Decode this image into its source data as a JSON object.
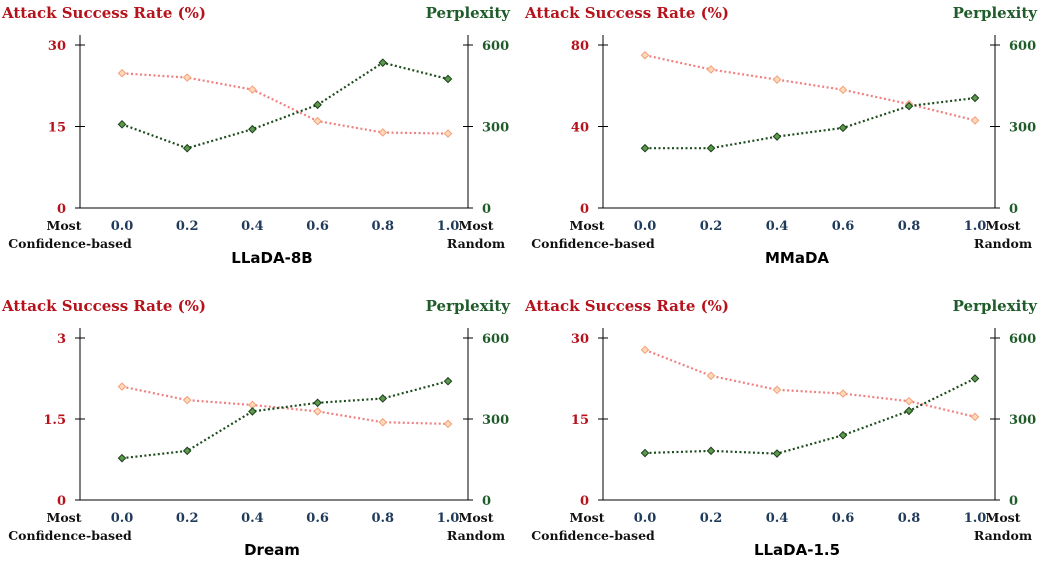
{
  "colors": {
    "asr": "#b5121b",
    "ppl": "#1f5c2a",
    "asr_line": "#f08080",
    "asr_marker_fill": "#ffd9b8",
    "asr_marker_edge": "#f2a07a",
    "ppl_line": "#1e4d1e",
    "ppl_marker_fill": "#5a9a4a",
    "ppl_marker_edge": "#1e3d1e",
    "xtick": "#1f3a5a"
  },
  "chart_data": [
    {
      "type": "line",
      "model": "LLaDA-8B",
      "left_axis_label": "Attack Success Rate (%)",
      "right_axis_label": "Perplexity",
      "left_left_label": "Most",
      "left_bottom_label": "Confidence-based",
      "right_top_label": "Most",
      "right_bottom_label": "Random",
      "x": [
        "0.0",
        "0.2",
        "0.4",
        "0.6",
        "0.8",
        "1.0"
      ],
      "left_ylim": [
        0,
        30
      ],
      "left_ticks": [
        "0",
        "15",
        "30"
      ],
      "right_ylim": [
        0,
        600
      ],
      "right_ticks": [
        "0",
        "300",
        "600"
      ],
      "series": [
        {
          "axis": "left",
          "values": [
            24.8,
            24.0,
            21.8,
            16.0,
            13.9,
            13.7
          ]
        },
        {
          "axis": "right",
          "values": [
            308,
            220,
            290,
            380,
            535,
            475
          ]
        }
      ]
    },
    {
      "type": "line",
      "model": "MMaDA",
      "left_axis_label": "Attack Success Rate (%)",
      "right_axis_label": "Perplexity",
      "left_left_label": "Most",
      "left_bottom_label": "Confidence-based",
      "right_top_label": "Most",
      "right_bottom_label": "Random",
      "x": [
        "0.0",
        "0.2",
        "0.4",
        "0.6",
        "0.8",
        "1.0"
      ],
      "left_ylim": [
        0,
        80
      ],
      "left_ticks": [
        "0",
        "40",
        "80"
      ],
      "right_ylim": [
        0,
        600
      ],
      "right_ticks": [
        "0",
        "300",
        "600"
      ],
      "series": [
        {
          "axis": "left",
          "values": [
            75,
            68,
            63,
            58,
            51,
            43
          ]
        },
        {
          "axis": "right",
          "values": [
            220,
            220,
            263,
            295,
            375,
            405
          ]
        }
      ]
    },
    {
      "type": "line",
      "model": "Dream",
      "left_axis_label": "Attack Success Rate (%)",
      "right_axis_label": "Perplexity",
      "left_left_label": "Most",
      "left_bottom_label": "Confidence-based",
      "right_top_label": "Most",
      "right_bottom_label": "Random",
      "x": [
        "0.0",
        "0.2",
        "0.4",
        "0.6",
        "0.8",
        "1.0"
      ],
      "left_ylim": [
        0,
        3
      ],
      "left_ticks": [
        "0",
        "1.5",
        "3"
      ],
      "right_ylim": [
        0,
        600
      ],
      "right_ticks": [
        "0",
        "300",
        "600"
      ],
      "series": [
        {
          "axis": "left",
          "values": [
            2.1,
            1.85,
            1.76,
            1.64,
            1.44,
            1.41
          ]
        },
        {
          "axis": "right",
          "values": [
            155,
            182,
            328,
            360,
            376,
            440
          ]
        }
      ]
    },
    {
      "type": "line",
      "model": "LLaDA-1.5",
      "left_axis_label": "Attack Success Rate (%)",
      "right_axis_label": "Perplexity",
      "left_left_label": "Most",
      "left_bottom_label": "Confidence-based",
      "right_top_label": "Most",
      "right_bottom_label": "Random",
      "x": [
        "0.0",
        "0.2",
        "0.4",
        "0.6",
        "0.8",
        "1.0"
      ],
      "left_ylim": [
        0,
        30
      ],
      "left_ticks": [
        "0",
        "15",
        "30"
      ],
      "right_ylim": [
        0,
        600
      ],
      "right_ticks": [
        "0",
        "300",
        "600"
      ],
      "series": [
        {
          "axis": "left",
          "values": [
            27.8,
            23.0,
            20.4,
            19.7,
            18.3,
            15.4
          ]
        },
        {
          "axis": "right",
          "values": [
            174,
            182,
            172,
            240,
            330,
            450
          ]
        }
      ]
    }
  ]
}
